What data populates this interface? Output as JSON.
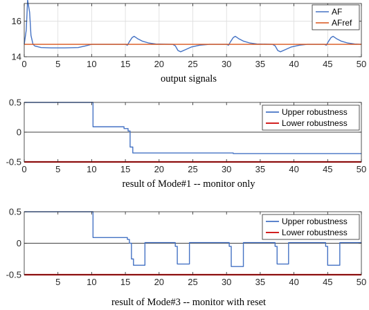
{
  "chart_data": [
    {
      "type": "line",
      "caption": "output signals",
      "xlim": [
        0,
        50
      ],
      "ylim": [
        14,
        17
      ],
      "x_ticks": [
        0,
        5,
        10,
        15,
        20,
        25,
        30,
        35,
        40,
        45,
        50
      ],
      "y_ticks": [
        14,
        16
      ],
      "grid": true,
      "legend_position": "top-right",
      "series": [
        {
          "name": "AF",
          "color": "#4472c4",
          "points": [
            [
              0,
              14.7
            ],
            [
              0.3,
              15.5
            ],
            [
              0.5,
              17.2
            ],
            [
              0.8,
              16.5
            ],
            [
              1.0,
              15.2
            ],
            [
              1.3,
              14.7
            ],
            [
              1.6,
              14.6
            ],
            [
              2.5,
              14.52
            ],
            [
              4,
              14.5
            ],
            [
              6,
              14.5
            ],
            [
              8,
              14.52
            ],
            [
              9,
              14.6
            ],
            [
              10,
              14.7
            ],
            [
              15,
              14.7
            ],
            [
              15.3,
              14.65
            ],
            [
              15.6,
              14.85
            ],
            [
              16.0,
              15.08
            ],
            [
              16.3,
              15.15
            ],
            [
              16.8,
              15.02
            ],
            [
              17.5,
              14.88
            ],
            [
              18.5,
              14.77
            ],
            [
              19.5,
              14.72
            ],
            [
              22,
              14.7
            ],
            [
              22.4,
              14.62
            ],
            [
              22.8,
              14.35
            ],
            [
              23.2,
              14.28
            ],
            [
              23.8,
              14.38
            ],
            [
              24.8,
              14.55
            ],
            [
              26,
              14.65
            ],
            [
              27.5,
              14.7
            ],
            [
              30,
              14.7
            ],
            [
              30.3,
              14.65
            ],
            [
              30.6,
              14.85
            ],
            [
              31.0,
              15.08
            ],
            [
              31.3,
              15.15
            ],
            [
              31.8,
              15.02
            ],
            [
              32.5,
              14.88
            ],
            [
              33.5,
              14.77
            ],
            [
              34.5,
              14.72
            ],
            [
              36.8,
              14.7
            ],
            [
              37.2,
              14.62
            ],
            [
              37.6,
              14.35
            ],
            [
              38.0,
              14.28
            ],
            [
              38.6,
              14.38
            ],
            [
              39.6,
              14.55
            ],
            [
              40.8,
              14.65
            ],
            [
              42,
              14.7
            ],
            [
              44.5,
              14.7
            ],
            [
              44.8,
              14.65
            ],
            [
              45.1,
              14.85
            ],
            [
              45.5,
              15.08
            ],
            [
              45.8,
              15.15
            ],
            [
              46.3,
              15.02
            ],
            [
              47,
              14.88
            ],
            [
              48,
              14.77
            ],
            [
              49,
              14.72
            ],
            [
              50,
              14.7
            ]
          ]
        },
        {
          "name": "AFref",
          "color": "#d95319",
          "points": [
            [
              0,
              14.7
            ],
            [
              50,
              14.7
            ]
          ]
        }
      ]
    },
    {
      "type": "line",
      "caption": "result of Mode#1 -- monitor only",
      "xlim": [
        0,
        50
      ],
      "ylim": [
        -0.5,
        0.5
      ],
      "x_ticks": [
        0,
        5,
        10,
        15,
        20,
        25,
        30,
        35,
        40,
        45,
        50
      ],
      "y_ticks": [
        -0.5,
        0,
        0.5
      ],
      "grid": false,
      "zero_line": true,
      "legend_position": "top-right",
      "series": [
        {
          "name": "Upper robustness",
          "color": "#4472c4",
          "points": [
            [
              0,
              0.5
            ],
            [
              10.2,
              0.5
            ],
            [
              10.2,
              0.09
            ],
            [
              14.8,
              0.09
            ],
            [
              14.8,
              0.06
            ],
            [
              15.4,
              0.06
            ],
            [
              15.4,
              0.02
            ],
            [
              15.7,
              0.02
            ],
            [
              15.7,
              -0.25
            ],
            [
              16.1,
              -0.25
            ],
            [
              16.1,
              -0.35
            ],
            [
              31,
              -0.35
            ],
            [
              31,
              -0.36
            ],
            [
              50,
              -0.36
            ]
          ]
        },
        {
          "name": "Lower robustness",
          "color": "#cc0000",
          "points": [
            [
              0,
              -0.5
            ],
            [
              50,
              -0.5
            ]
          ]
        }
      ]
    },
    {
      "type": "line",
      "caption": "result of Mode#3 -- monitor with reset",
      "xlim": [
        0,
        50
      ],
      "ylim": [
        -0.5,
        0.5
      ],
      "x_ticks": [
        5,
        10,
        15,
        20,
        25,
        30,
        35,
        40,
        45,
        50
      ],
      "y_ticks": [
        -0.5,
        0,
        0.5
      ],
      "grid": false,
      "zero_line": true,
      "legend_position": "top-right",
      "series": [
        {
          "name": "Upper robustness",
          "color": "#4472c4",
          "points": [
            [
              0,
              0.5
            ],
            [
              10.2,
              0.5
            ],
            [
              10.2,
              0.09
            ],
            [
              15.3,
              0.09
            ],
            [
              15.3,
              0.06
            ],
            [
              15.6,
              0.06
            ],
            [
              15.6,
              0.0
            ],
            [
              15.9,
              0.0
            ],
            [
              15.9,
              -0.25
            ],
            [
              16.2,
              -0.25
            ],
            [
              16.2,
              -0.35
            ],
            [
              17.9,
              -0.35
            ],
            [
              17.9,
              0.01
            ],
            [
              22.4,
              0.01
            ],
            [
              22.4,
              -0.05
            ],
            [
              22.7,
              -0.05
            ],
            [
              22.7,
              -0.33
            ],
            [
              24.5,
              -0.33
            ],
            [
              24.5,
              0.01
            ],
            [
              30.4,
              0.01
            ],
            [
              30.4,
              -0.05
            ],
            [
              30.7,
              -0.05
            ],
            [
              30.7,
              -0.37
            ],
            [
              32.5,
              -0.37
            ],
            [
              32.5,
              0.01
            ],
            [
              37.2,
              0.01
            ],
            [
              37.2,
              -0.05
            ],
            [
              37.5,
              -0.05
            ],
            [
              37.5,
              -0.33
            ],
            [
              39.2,
              -0.33
            ],
            [
              39.2,
              0.01
            ],
            [
              44.7,
              0.01
            ],
            [
              44.7,
              -0.05
            ],
            [
              45.0,
              -0.05
            ],
            [
              45.0,
              -0.35
            ],
            [
              46.8,
              -0.35
            ],
            [
              46.8,
              0.01
            ],
            [
              50,
              0.01
            ]
          ]
        },
        {
          "name": "Lower robustness",
          "color": "#cc0000",
          "points": [
            [
              0,
              -0.5
            ],
            [
              50,
              -0.5
            ]
          ]
        }
      ]
    }
  ]
}
